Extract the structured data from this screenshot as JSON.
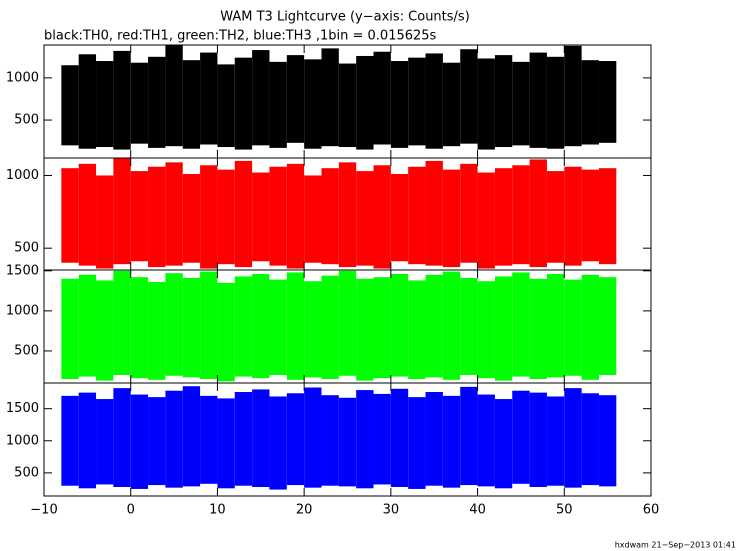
{
  "chart_data": [
    {
      "type": "range",
      "title": "WAM T3 Lightcurve (y−axis: Counts/s)",
      "subtitle": "black:TH0, red:TH1, green:TH2, blue:TH3 ,1bin = 0.015625s",
      "x": [
        -7,
        -5,
        -3,
        -1,
        1,
        3,
        5,
        7,
        9,
        11,
        13,
        15,
        17,
        19,
        21,
        23,
        25,
        27,
        29,
        31,
        33,
        35,
        37,
        39,
        41,
        43,
        45,
        47,
        49,
        51,
        53,
        55
      ],
      "series": [
        {
          "color": "#000000",
          "values": [
            1150,
            1280,
            1200,
            1320,
            1180,
            1250,
            1390,
            1210,
            1300,
            1160,
            1240,
            1330,
            1190,
            1270,
            1220,
            1350,
            1170,
            1260,
            1310,
            1200,
            1240,
            1290,
            1180,
            1340,
            1230,
            1270,
            1190,
            1300,
            1250,
            1380,
            1210,
            1200
          ],
          "lows": [
            200,
            160,
            180,
            150,
            220,
            170,
            190,
            160,
            210,
            180,
            150,
            200,
            170,
            230,
            160,
            190,
            180,
            150,
            210,
            170,
            200,
            160,
            190,
            220,
            150,
            180,
            200,
            170,
            160,
            190,
            210,
            230
          ]
        }
      ],
      "ylim": [
        50,
        1390
      ],
      "yticks": [
        500,
        1000
      ]
    },
    {
      "type": "range",
      "x": [
        -7,
        -5,
        -3,
        -1,
        1,
        3,
        5,
        7,
        9,
        11,
        13,
        15,
        17,
        19,
        21,
        23,
        25,
        27,
        29,
        31,
        33,
        35,
        37,
        39,
        41,
        43,
        45,
        47,
        49,
        51,
        53,
        55
      ],
      "series": [
        {
          "color": "#ff0000",
          "values": [
            1050,
            1080,
            1000,
            1120,
            1030,
            1060,
            1090,
            1010,
            1070,
            1040,
            1100,
            1020,
            1060,
            1080,
            1000,
            1050,
            1090,
            1030,
            1070,
            1010,
            1060,
            1100,
            1040,
            1080,
            1020,
            1050,
            1070,
            1110,
            1030,
            1060,
            1040,
            1050
          ],
          "lows": [
            400,
            380,
            360,
            390,
            410,
            370,
            380,
            400,
            360,
            390,
            370,
            410,
            380,
            360,
            400,
            390,
            370,
            380,
            360,
            410,
            390,
            380,
            370,
            400,
            360,
            380,
            390,
            370,
            400,
            380,
            410,
            390
          ]
        }
      ],
      "ylim": [
        350,
        1120
      ],
      "yticks": [
        500,
        1000
      ]
    },
    {
      "type": "range",
      "x": [
        -7,
        -5,
        -3,
        -1,
        1,
        3,
        5,
        7,
        9,
        11,
        13,
        15,
        17,
        19,
        21,
        23,
        25,
        27,
        29,
        31,
        33,
        35,
        37,
        39,
        41,
        43,
        45,
        47,
        49,
        51,
        53,
        55
      ],
      "series": [
        {
          "color": "#00ff00",
          "values": [
            1400,
            1450,
            1380,
            1500,
            1420,
            1360,
            1470,
            1410,
            1490,
            1350,
            1430,
            1460,
            1390,
            1480,
            1370,
            1440,
            1500,
            1400,
            1420,
            1460,
            1380,
            1450,
            1490,
            1410,
            1370,
            1430,
            1480,
            1400,
            1460,
            1390,
            1450,
            1420
          ],
          "lows": [
            150,
            180,
            130,
            200,
            160,
            140,
            190,
            170,
            150,
            120,
            180,
            160,
            200,
            140,
            170,
            150,
            190,
            130,
            160,
            180,
            150,
            170,
            140,
            200,
            160,
            130,
            180,
            150,
            170,
            190,
            140,
            200
          ]
        }
      ],
      "ylim": [
        100,
        1510
      ],
      "yticks": [
        500,
        1000,
        1500
      ]
    },
    {
      "type": "range",
      "x": [
        -7,
        -5,
        -3,
        -1,
        1,
        3,
        5,
        7,
        9,
        11,
        13,
        15,
        17,
        19,
        21,
        23,
        25,
        27,
        29,
        31,
        33,
        35,
        37,
        39,
        41,
        43,
        45,
        47,
        49,
        51,
        53,
        55
      ],
      "series": [
        {
          "color": "#0000ff",
          "values": [
            1700,
            1750,
            1650,
            1820,
            1720,
            1680,
            1780,
            1850,
            1700,
            1660,
            1760,
            1800,
            1690,
            1740,
            1830,
            1710,
            1670,
            1790,
            1730,
            1810,
            1680,
            1760,
            1700,
            1840,
            1720,
            1650,
            1780,
            1750,
            1690,
            1820,
            1740,
            1710
          ],
          "lows": [
            300,
            260,
            320,
            280,
            250,
            310,
            270,
            290,
            330,
            260,
            300,
            280,
            240,
            310,
            270,
            300,
            290,
            260,
            320,
            280,
            250,
            300,
            270,
            310,
            290,
            260,
            330,
            280,
            300,
            270,
            310,
            290
          ]
        }
      ],
      "ylim": [
        140,
        1900
      ],
      "yticks": [
        500,
        1000,
        1500
      ],
      "xlim": [
        -10,
        60
      ],
      "xticks": [
        {
          "value": -10,
          "label": "−10"
        },
        0,
        10,
        20,
        30,
        40,
        50,
        60
      ]
    }
  ],
  "footer": "hxdwam 21−Sep−2013 01:41"
}
